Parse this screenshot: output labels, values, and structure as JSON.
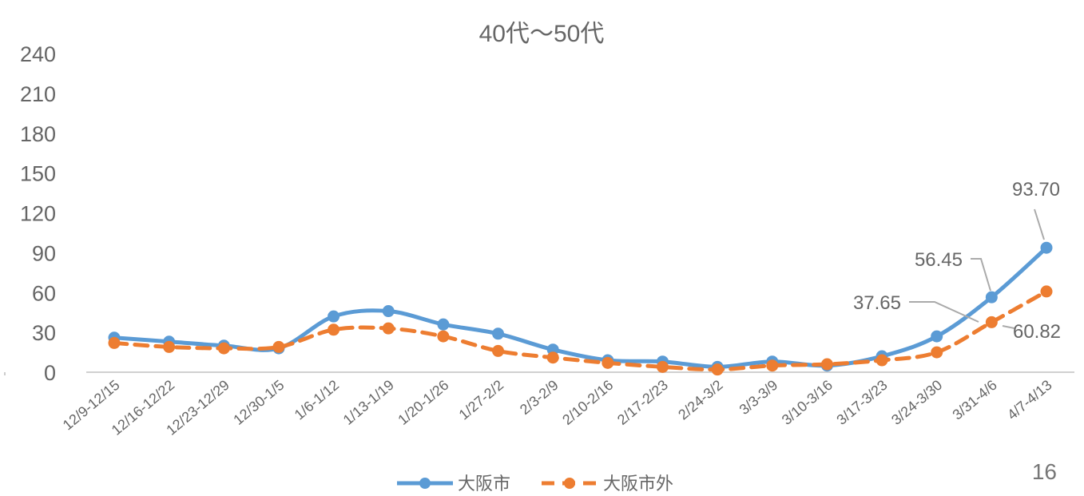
{
  "chart_data": {
    "type": "line",
    "title": "40代～50代",
    "categories": [
      "12/9-12/15",
      "12/16-12/22",
      "12/23-12/29",
      "12/30-1/5",
      "1/6-1/12",
      "1/13-1/19",
      "1/20-1/26",
      "1/27-2/2",
      "2/3-2/9",
      "2/10-2/16",
      "2/17-2/23",
      "2/24-3/2",
      "3/3-3/9",
      "3/10-3/16",
      "3/17-3/23",
      "3/24-3/30",
      "3/31-4/6",
      "4/7-4/13"
    ],
    "y_ticks": [
      "240",
      "210",
      "180",
      "150",
      "120",
      "90",
      "60",
      "30",
      "0"
    ],
    "ylim": [
      0,
      240
    ],
    "series": [
      {
        "name": "大阪市",
        "color": "#5B9BD5",
        "dashed": false,
        "values": [
          26,
          23,
          20,
          18,
          42,
          46,
          36,
          29,
          17,
          9,
          8,
          4,
          8,
          5,
          12,
          27,
          56.45,
          93.7
        ]
      },
      {
        "name": "大阪市外",
        "color": "#ED7D31",
        "dashed": true,
        "values": [
          22,
          19,
          18,
          19,
          32,
          33,
          27,
          16,
          11,
          7,
          4,
          2,
          5,
          6,
          9,
          15,
          37.65,
          60.82
        ]
      }
    ],
    "data_labels": [
      {
        "series": 0,
        "index": 17,
        "text": "93.70"
      },
      {
        "series": 0,
        "index": 16,
        "text": "56.45"
      },
      {
        "series": 1,
        "index": 16,
        "text": "37.65"
      },
      {
        "series": 1,
        "index": 17,
        "text": "60.82"
      }
    ],
    "legend_position": "bottom",
    "grid": false
  },
  "page_number": "16"
}
